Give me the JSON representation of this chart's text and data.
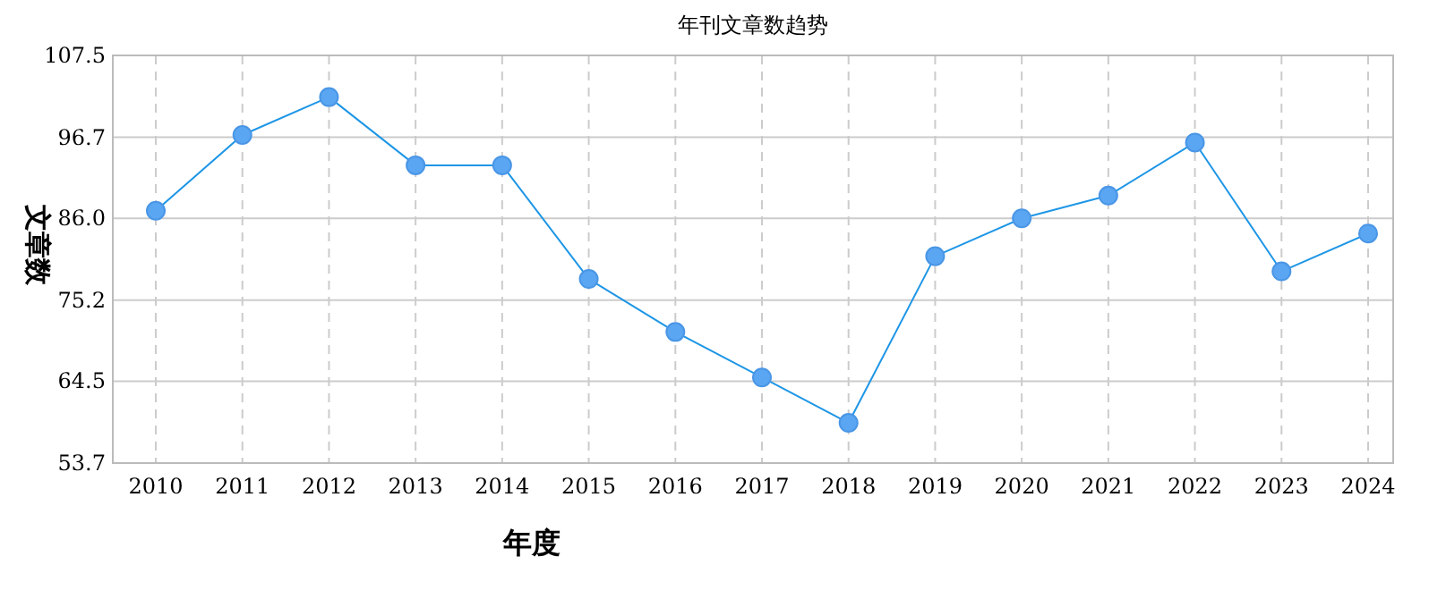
{
  "chart_data": {
    "type": "line",
    "title": "年刊文章数趋势",
    "xlabel": "年度",
    "ylabel": "文章数",
    "categories": [
      "2010",
      "2011",
      "2012",
      "2013",
      "2014",
      "2015",
      "2016",
      "2017",
      "2018",
      "2019",
      "2020",
      "2021",
      "2022",
      "2023",
      "2024"
    ],
    "series": [
      {
        "color": "#1e96e6",
        "values": [
          87,
          97,
          102,
          93,
          93,
          78,
          71,
          65,
          59,
          81,
          86,
          89,
          96,
          79,
          84
        ]
      }
    ],
    "ylim": [
      53.7,
      107.5
    ],
    "yticks": [
      53.7,
      64.5,
      75.2,
      {
        "value": 86,
        "label": "86.0"
      },
      96.7,
      107.5
    ],
    "grid": true,
    "marker": "circle"
  }
}
